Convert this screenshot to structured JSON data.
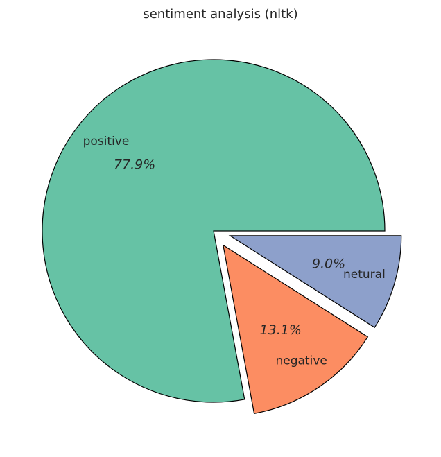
{
  "chart_data": {
    "type": "pie",
    "title": "sentiment analysis (nltk)",
    "slices": [
      {
        "label": "positive",
        "value": 77.9,
        "pct_label": "77.9%",
        "color": "#66c2a5",
        "explode": 0.0
      },
      {
        "label": "negative",
        "value": 13.1,
        "pct_label": "13.1%",
        "color": "#fc8d62",
        "explode": 0.1
      },
      {
        "label": "netural",
        "value": 9.0,
        "pct_label": "9.0%",
        "color": "#8da0cb",
        "explode": 0.1
      }
    ],
    "start_angle": 0,
    "direction": "counterclockwise"
  }
}
